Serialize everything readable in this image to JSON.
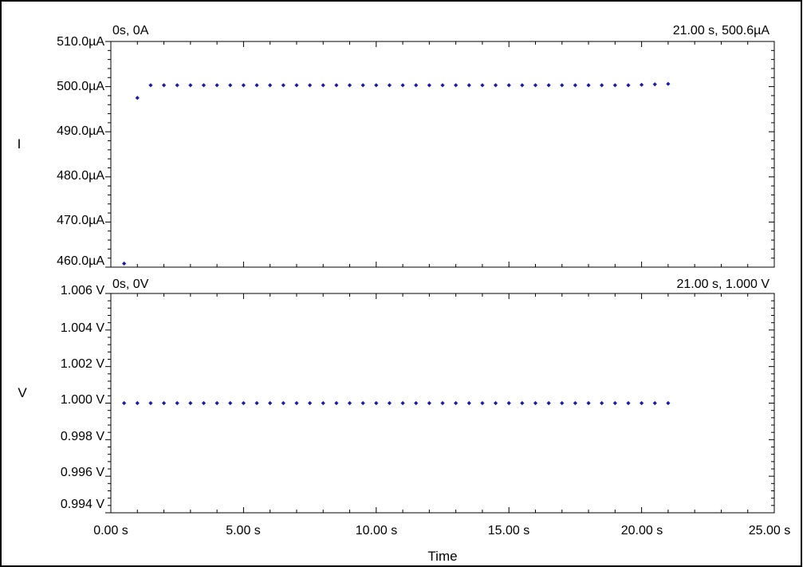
{
  "chart_data": [
    {
      "type": "scatter",
      "ylabel": "I",
      "ylim": [
        460.0,
        510.0
      ],
      "yticks": [
        "510.0µA",
        "500.0µA",
        "490.0µA",
        "480.0µA",
        "470.0µA",
        "460.0µA"
      ],
      "start_readout": "0s, 0A",
      "end_readout": "21.00 s, 500.6µA",
      "marker_color": "#1a1ab0",
      "grid": false,
      "series": [
        {
          "x": [
            0.5,
            1.0,
            1.5,
            2.0,
            2.5,
            3.0,
            3.5,
            4.0,
            4.5,
            5.0,
            5.5,
            6.0,
            6.5,
            7.0,
            7.5,
            8.0,
            8.5,
            9.0,
            9.5,
            10.0,
            10.5,
            11.0,
            11.5,
            12.0,
            12.5,
            13.0,
            13.5,
            14.0,
            14.5,
            15.0,
            15.5,
            16.0,
            16.5,
            17.0,
            17.5,
            18.0,
            18.5,
            19.0,
            19.5,
            20.0,
            20.5,
            21.0
          ],
          "y": [
            460.8,
            497.5,
            500.3,
            500.3,
            500.3,
            500.3,
            500.3,
            500.3,
            500.3,
            500.3,
            500.3,
            500.3,
            500.3,
            500.3,
            500.3,
            500.3,
            500.3,
            500.3,
            500.3,
            500.3,
            500.3,
            500.3,
            500.3,
            500.3,
            500.3,
            500.3,
            500.3,
            500.3,
            500.3,
            500.3,
            500.3,
            500.3,
            500.3,
            500.3,
            500.3,
            500.3,
            500.3,
            500.3,
            500.3,
            500.4,
            500.5,
            500.6
          ]
        }
      ]
    },
    {
      "type": "scatter",
      "ylabel": "V",
      "xlabel": "Time",
      "ylim": [
        0.994,
        1.006
      ],
      "yticks": [
        "1.006 V",
        "1.004 V",
        "1.002 V",
        "1.000 V",
        "0.998 V",
        "0.996 V",
        "0.994 V"
      ],
      "xlim": [
        0,
        25
      ],
      "xticks": [
        "0.00 s",
        "5.00 s",
        "10.00 s",
        "15.00 s",
        "20.00 s",
        "25.00 s"
      ],
      "start_readout": "0s, 0V",
      "end_readout": "21.00 s, 1.000 V",
      "marker_color": "#1a1ab0",
      "grid": false,
      "series": [
        {
          "x": [
            0.5,
            1.0,
            1.5,
            2.0,
            2.5,
            3.0,
            3.5,
            4.0,
            4.5,
            5.0,
            5.5,
            6.0,
            6.5,
            7.0,
            7.5,
            8.0,
            8.5,
            9.0,
            9.5,
            10.0,
            10.5,
            11.0,
            11.5,
            12.0,
            12.5,
            13.0,
            13.5,
            14.0,
            14.5,
            15.0,
            15.5,
            16.0,
            16.5,
            17.0,
            17.5,
            18.0,
            18.5,
            19.0,
            19.5,
            20.0,
            20.5,
            21.0
          ],
          "y": [
            1.0,
            1.0,
            1.0,
            1.0,
            1.0,
            1.0,
            1.0,
            1.0,
            1.0,
            1.0,
            1.0,
            1.0,
            1.0,
            1.0,
            1.0,
            1.0,
            1.0,
            1.0,
            1.0,
            1.0,
            1.0,
            1.0,
            1.0,
            1.0,
            1.0,
            1.0,
            1.0,
            1.0,
            1.0,
            1.0,
            1.0,
            1.0,
            1.0,
            1.0,
            1.0,
            1.0,
            1.0,
            1.0,
            1.0,
            1.0,
            1.0,
            1.0
          ]
        }
      ]
    }
  ]
}
